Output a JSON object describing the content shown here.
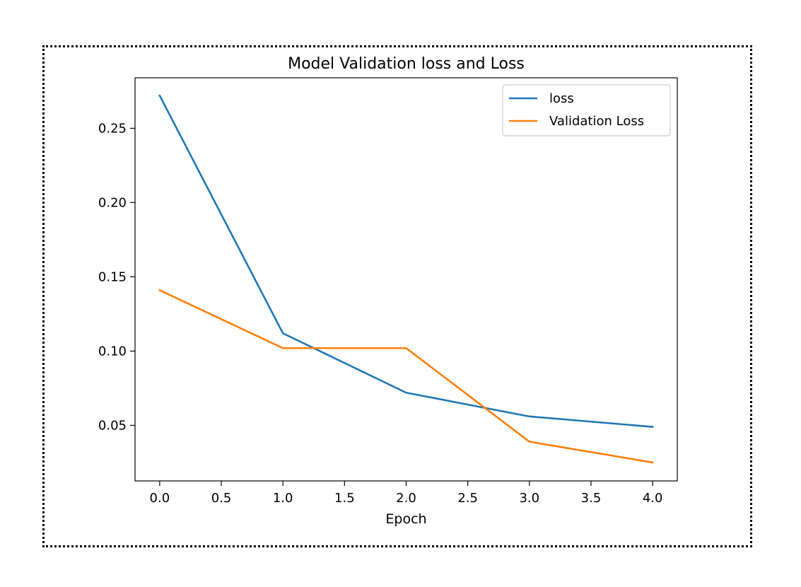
{
  "chart_data": {
    "type": "line",
    "title": "Model Validation loss and Loss",
    "xlabel": "Epoch",
    "ylabel": "",
    "x": [
      0,
      1,
      2,
      3,
      4
    ],
    "series": [
      {
        "name": "loss",
        "color": "#1f77b4",
        "values": [
          0.272,
          0.112,
          0.072,
          0.056,
          0.049
        ]
      },
      {
        "name": "Validation Loss",
        "color": "#ff7f0e",
        "values": [
          0.141,
          0.102,
          0.102,
          0.039,
          0.025
        ]
      }
    ],
    "xticks": [
      0.0,
      0.5,
      1.0,
      1.5,
      2.0,
      2.5,
      3.0,
      3.5,
      4.0
    ],
    "xtick_labels": [
      "0.0",
      "0.5",
      "1.0",
      "1.5",
      "2.0",
      "2.5",
      "3.0",
      "3.5",
      "4.0"
    ],
    "yticks": [
      0.05,
      0.1,
      0.15,
      0.2,
      0.25
    ],
    "ytick_labels": [
      "0.05",
      "0.10",
      "0.15",
      "0.20",
      "0.25"
    ],
    "xlim": [
      -0.2,
      4.2
    ],
    "ylim": [
      0.0126,
      0.284
    ],
    "grid": false,
    "legend_position": "upper right"
  }
}
